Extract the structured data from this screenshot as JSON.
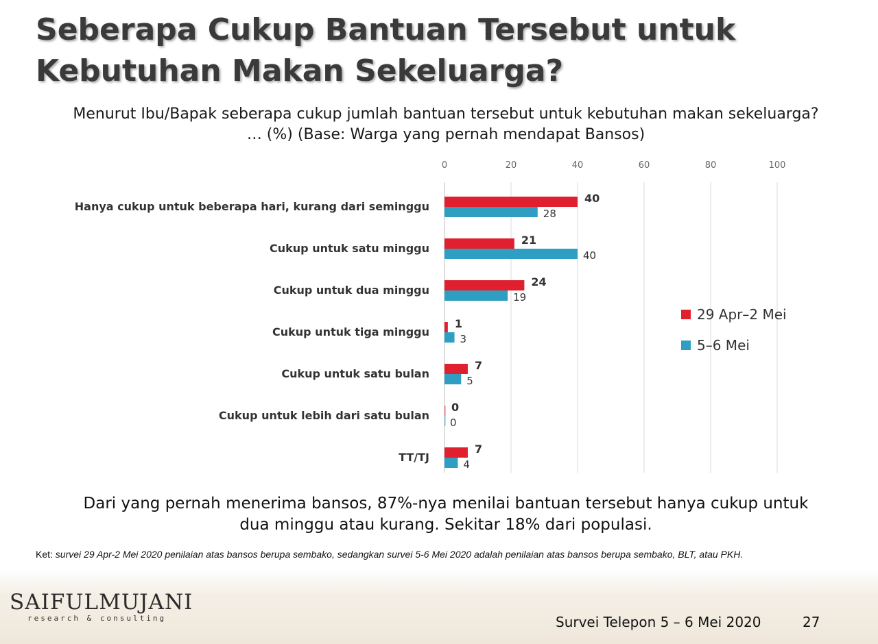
{
  "slide": {
    "title": "Seberapa Cukup Bantuan Tersebut untuk Kebutuhan Makan Sekeluarga?",
    "subtitle": "Menurut Ibu/Bapak seberapa cukup jumlah bantuan tersebut untuk kebutuhan makan sekeluarga? … (%) (Base: Warga yang pernah mendapat Bansos)",
    "summary": "Dari yang pernah menerima bansos, 87%-nya menilai bantuan tersebut hanya cukup untuk dua minggu atau kurang. Sekitar 18% dari populasi.",
    "note_lead": "Ket: ",
    "note_body": "survei 29 Apr-2 Mei 2020 penilaian atas bansos berupa sembako, sedangkan survei 5-6 Mei 2020 adalah penilaian atas bansos berupa sembako, BLT, atau PKH.",
    "logo_main": "SAIFULMUJANI",
    "logo_sub": "research & consulting",
    "footer_survey": "Survei Telepon 5 – 6 Mei 2020",
    "page_number": "27"
  },
  "chart_data": {
    "type": "bar",
    "orientation": "horizontal",
    "categories": [
      "Hanya cukup untuk beberapa hari, kurang dari seminggu",
      "Cukup untuk satu minggu",
      "Cukup untuk dua minggu",
      "Cukup untuk tiga minggu",
      "Cukup untuk satu bulan",
      "Cukup untuk lebih dari satu bulan",
      "TT/TJ"
    ],
    "series": [
      {
        "name": "29 Apr–2 Mei",
        "color": "#e0202e",
        "values": [
          40,
          21,
          24,
          1,
          7,
          0,
          7
        ]
      },
      {
        "name": "5–6 Mei",
        "color": "#2e9fc3",
        "values": [
          28,
          40,
          19,
          3,
          5,
          0,
          4
        ]
      }
    ],
    "xlim": [
      0,
      100
    ],
    "xticks": [
      0,
      20,
      40,
      60,
      80,
      100
    ],
    "xaxis_position": "top",
    "grid": true,
    "legend_position": "right"
  }
}
